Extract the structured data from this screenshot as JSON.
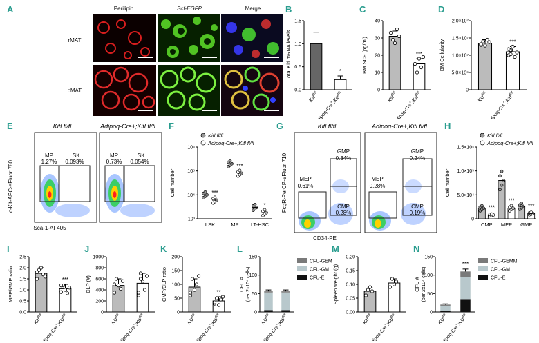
{
  "panel_letters": [
    "A",
    "B",
    "C",
    "D",
    "E",
    "F",
    "G",
    "H",
    "I",
    "J",
    "K",
    "L",
    "M",
    "N"
  ],
  "panelA": {
    "columns": [
      "Perilipin",
      "Scf-EGFP",
      "Merge"
    ],
    "rows": [
      "rMAT",
      "cMAT"
    ]
  },
  "panelE": {
    "headers": [
      "Kitl fl/fl",
      "Adipoq-Cre+;Kitl fl/fl"
    ],
    "ylabel": "c-Kit-APC-eFluor 780",
    "xlabel": "Sca-1-AF405",
    "gates": [
      {
        "mp": "MP",
        "mp_val": "1.27%",
        "lsk": "LSK",
        "lsk_val": "0.093%"
      },
      {
        "mp": "MP",
        "mp_val": "0.73%",
        "lsk": "LSK",
        "lsk_val": "0.054%"
      }
    ]
  },
  "panelG": {
    "headers": [
      "Kitl fl/fl",
      "Adipoq-Cre+;Kitl fl/fl"
    ],
    "ylabel": "FcgR-PerCP-eFluor 710",
    "xlabel": "CD34-PE",
    "gates": [
      {
        "mep": "MEP",
        "mep_val": "0.61%",
        "gmp": "GMP",
        "gmp_val": "0.34%",
        "cmp": "CMP",
        "cmp_val": "0.28%"
      },
      {
        "mep": "MEP",
        "mep_val": "0.28%",
        "gmp": "GMP",
        "gmp_val": "0.24%",
        "cmp": "CMP",
        "cmp_val": "0.19%"
      }
    ]
  },
  "chart_data": [
    {
      "id": "B",
      "type": "bar",
      "categories": [
        "Kitl fl/fl",
        "Adipoq-Cre+;Kitl fl/fl"
      ],
      "values": [
        1.0,
        0.22
      ],
      "errors": [
        0.25,
        0.08
      ],
      "ylabel": "Total Kitl mRNA levels",
      "ylim": [
        0,
        1.5
      ],
      "yticks": [
        "0.0",
        "0.5",
        "1.0",
        "1.5"
      ],
      "sig": "*",
      "colors": [
        "#666666",
        "#ffffff"
      ]
    },
    {
      "id": "C",
      "type": "bar",
      "categories": [
        "Kitl fl/fl",
        "Adipoq-Cre+;Kitl fl/fl"
      ],
      "values": [
        31,
        15
      ],
      "errors": [
        3,
        3
      ],
      "ylabel": "BM SCF (pg/ml)",
      "ylim": [
        0,
        40
      ],
      "yticks": [
        "0",
        "10",
        "20",
        "30",
        "40"
      ],
      "sig": "***",
      "colors": [
        "#bbbbbb",
        "#ffffff"
      ],
      "points": [
        [
          33,
          29,
          27,
          35,
          31
        ],
        [
          15,
          10,
          18,
          13,
          19
        ]
      ]
    },
    {
      "id": "D",
      "type": "bar",
      "categories": [
        "Kitl fl/fl",
        "Adipoq-Cre+;Kitl fl/fl"
      ],
      "values": [
        13500000,
        11000000
      ],
      "errors": [
        1000000,
        1500000
      ],
      "ylabel": "BM Cellularity",
      "ylim": [
        0,
        20000000
      ],
      "yticks": [
        "0",
        "5.0×10⁶",
        "1.0×10⁷",
        "1.5×10⁷",
        "2.0×10⁷"
      ],
      "sig": "***",
      "colors": [
        "#bbbbbb",
        "#ffffff"
      ],
      "points": [
        [
          13000000,
          14000000,
          12800000,
          14500000,
          13800000,
          13200000
        ],
        [
          10000000,
          11500000,
          12500000,
          9500000,
          10800000,
          11800000,
          10300000
        ]
      ]
    },
    {
      "id": "F",
      "type": "scatter",
      "categories": [
        "LSK",
        "MP",
        "LT-HSC"
      ],
      "ylabel": "Cell number",
      "ylim": [
        1000,
        1000000
      ],
      "yscale": "log",
      "yticks": [
        "10³",
        "10⁴",
        "10⁵",
        "10⁶"
      ],
      "series": [
        {
          "name": "Kitl fl/fl",
          "values": [
            10000,
            200000,
            3000
          ]
        },
        {
          "name": "Adipoq-Cre+;Kitl fl/fl",
          "values": [
            6000,
            80000,
            1800
          ]
        }
      ],
      "sigs": [
        "***",
        "***",
        "*"
      ]
    },
    {
      "id": "H",
      "type": "scatter",
      "categories": [
        "CMP",
        "MEP",
        "GMP"
      ],
      "ylabel": "Cell number",
      "ylim": [
        0,
        150000
      ],
      "yticks": [
        "0",
        "5.0×10⁴",
        "1.0×10⁵",
        "1.5×10⁵"
      ],
      "series": [
        {
          "name": "Kitl fl/fl",
          "values": [
            22000,
            80000,
            26000
          ]
        },
        {
          "name": "Adipoq-Cre+;Kitl fl/fl",
          "values": [
            8000,
            22000,
            11000
          ]
        }
      ],
      "sigs": [
        "***",
        "***",
        "***"
      ]
    },
    {
      "id": "I",
      "type": "bar",
      "categories": [
        "Kitl fl/fl",
        "Adipoq-Cre+;Kitl fl/fl"
      ],
      "values": [
        1.75,
        1.05
      ],
      "errors": [
        0.25,
        0.2
      ],
      "ylabel": "MEP/GMP ratio",
      "ylim": [
        0,
        2.5
      ],
      "yticks": [
        "0.0",
        "0.5",
        "1.0",
        "1.5",
        "2.0",
        "2.5"
      ],
      "sig": "***",
      "colors": [
        "#bbbbbb",
        "#ffffff"
      ],
      "points": [
        [
          1.5,
          1.9,
          2.0,
          1.7,
          1.6,
          1.8
        ],
        [
          0.9,
          1.2,
          1.0,
          0.85,
          1.1,
          1.2
        ]
      ]
    },
    {
      "id": "J",
      "type": "bar",
      "categories": [
        "Kitl fl/fl",
        "Adipoq-Cre+;Kitl fl/fl"
      ],
      "values": [
        480,
        520
      ],
      "errors": [
        120,
        180
      ],
      "ylabel": "CLP (#)",
      "ylim": [
        0,
        1000
      ],
      "yticks": [
        "0",
        "200",
        "400",
        "600",
        "800",
        "1000"
      ],
      "sig": "",
      "colors": [
        "#bbbbbb",
        "#ffffff"
      ],
      "points": [
        [
          350,
          600,
          480,
          420,
          560,
          500
        ],
        [
          300,
          700,
          550,
          400,
          650,
          350,
          600
        ]
      ]
    },
    {
      "id": "K",
      "type": "bar",
      "categories": [
        "Kitl fl/fl",
        "Adipoq-Cre+;Kitl fl/fl"
      ],
      "values": [
        90,
        40
      ],
      "errors": [
        30,
        15
      ],
      "ylabel": "CMP/CLP ratio",
      "ylim": [
        0,
        200
      ],
      "yticks": [
        "0",
        "50",
        "100",
        "150",
        "200"
      ],
      "sig": "**",
      "colors": [
        "#bbbbbb",
        "#ffffff"
      ],
      "points": [
        [
          60,
          120,
          80,
          100,
          130,
          70
        ],
        [
          30,
          50,
          25,
          45,
          55,
          35
        ]
      ]
    },
    {
      "id": "L",
      "type": "stacked_bar",
      "categories": [
        "Kitl fl/fl",
        "Adipoq-Cre+;Kitl fl/fl"
      ],
      "ylabel": "CFU #",
      "ylabel2": "(per 2x10⁴ cells)",
      "ylim": [
        0,
        150
      ],
      "yticks": [
        "0",
        "50",
        "100",
        "150"
      ],
      "series": [
        {
          "name": "CFU-E",
          "values": [
            5,
            5
          ],
          "color": "#111111"
        },
        {
          "name": "CFU-GM",
          "values": [
            48,
            48
          ],
          "color": "#b8c8cc"
        },
        {
          "name": "CFU-GEMM",
          "values": [
            3,
            3
          ],
          "color": "#7a7a7a"
        }
      ]
    },
    {
      "id": "M",
      "type": "bar",
      "categories": [
        "Kitl fl/fl",
        "Adipoq-Cre+;Kitl fl/fl"
      ],
      "values": [
        0.075,
        0.105
      ],
      "errors": [
        0.012,
        0.015
      ],
      "ylabel": "Spleen weight (g)",
      "ylim": [
        0,
        0.2
      ],
      "yticks": [
        "0.00",
        "0.05",
        "0.10",
        "0.15",
        "0.20"
      ],
      "sig": "",
      "colors": [
        "#bbbbbb",
        "#ffffff"
      ],
      "points": [
        [
          0.06,
          0.08,
          0.09,
          0.075
        ],
        [
          0.09,
          0.12,
          0.1,
          0.11
        ]
      ]
    },
    {
      "id": "N",
      "type": "stacked_bar",
      "categories": [
        "Kitl fl/fl",
        "Adipoq-Cre+;Kitl fl/fl"
      ],
      "ylabel": "CFU #",
      "ylabel2": "(per 2x10⁴ cells)",
      "ylim": [
        0,
        150
      ],
      "yticks": [
        "0",
        "50",
        "100",
        "150"
      ],
      "sig": "***",
      "series": [
        {
          "name": "CFU-E",
          "values": [
            3,
            35
          ],
          "color": "#111111"
        },
        {
          "name": "CFU-GM",
          "values": [
            14,
            60
          ],
          "color": "#b8c8cc"
        },
        {
          "name": "CFU-GEMM",
          "values": [
            3,
            15
          ],
          "color": "#7a7a7a"
        }
      ]
    }
  ]
}
